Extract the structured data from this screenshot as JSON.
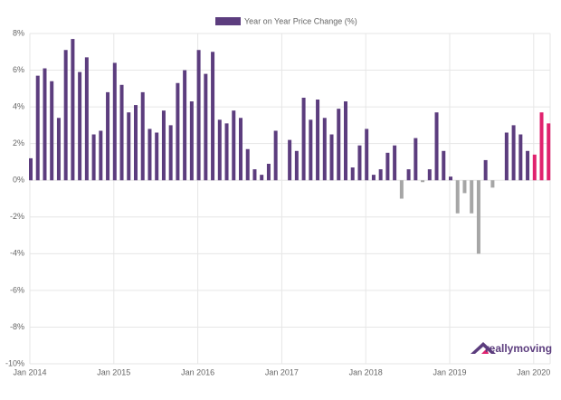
{
  "chart_data": {
    "type": "bar",
    "categories": [
      "Jan 2014",
      null,
      null,
      null,
      null,
      null,
      null,
      null,
      null,
      null,
      null,
      null,
      "Jan 2015",
      null,
      null,
      null,
      null,
      null,
      null,
      null,
      null,
      null,
      null,
      null,
      "Jan 2016",
      null,
      null,
      null,
      null,
      null,
      null,
      null,
      null,
      null,
      null,
      null,
      "Jan 2017",
      null,
      null,
      null,
      null,
      null,
      null,
      null,
      null,
      null,
      null,
      null,
      "Jan 2018",
      null,
      null,
      null,
      null,
      null,
      null,
      null,
      null,
      null,
      null,
      null,
      "Jan 2019",
      null,
      null,
      null,
      null,
      null,
      null,
      null,
      null,
      null,
      null,
      null,
      "Jan 2020",
      null,
      null
    ],
    "series": [
      {
        "name": "Year on Year Price Change (%)",
        "color": "#5c3d7e",
        "values": [
          1.2,
          5.7,
          6.1,
          5.4,
          3.4,
          7.1,
          7.7,
          5.9,
          6.7,
          2.5,
          2.7,
          4.8,
          6.4,
          5.2,
          3.7,
          4.1,
          4.8,
          2.8,
          2.6,
          3.8,
          3.0,
          5.3,
          6.0,
          4.3,
          7.1,
          5.8,
          7.0,
          3.3,
          3.1,
          3.8,
          3.4,
          1.7,
          0.6,
          0.3,
          0.9,
          2.7,
          0,
          2.2,
          1.6,
          4.5,
          3.3,
          4.4,
          3.4,
          2.5,
          3.9,
          4.3,
          0.7,
          1.9,
          2.8,
          0.3,
          0.6,
          1.5,
          1.9,
          -1.0,
          0.6,
          2.3,
          -0.1,
          0.6,
          3.7,
          1.6,
          0.2,
          -1.8,
          -0.7,
          -1.8,
          -4.0,
          1.1,
          -0.4,
          0,
          2.6,
          3.0,
          2.5,
          1.6,
          1.4,
          3.7,
          3.1
        ],
        "colors": [
          "#5c3d7e",
          "#5c3d7e",
          "#5c3d7e",
          "#5c3d7e",
          "#5c3d7e",
          "#5c3d7e",
          "#5c3d7e",
          "#5c3d7e",
          "#5c3d7e",
          "#5c3d7e",
          "#5c3d7e",
          "#5c3d7e",
          "#5c3d7e",
          "#5c3d7e",
          "#5c3d7e",
          "#5c3d7e",
          "#5c3d7e",
          "#5c3d7e",
          "#5c3d7e",
          "#5c3d7e",
          "#5c3d7e",
          "#5c3d7e",
          "#5c3d7e",
          "#5c3d7e",
          "#5c3d7e",
          "#5c3d7e",
          "#5c3d7e",
          "#5c3d7e",
          "#5c3d7e",
          "#5c3d7e",
          "#5c3d7e",
          "#5c3d7e",
          "#5c3d7e",
          "#5c3d7e",
          "#5c3d7e",
          "#5c3d7e",
          "#5c3d7e",
          "#5c3d7e",
          "#5c3d7e",
          "#5c3d7e",
          "#5c3d7e",
          "#5c3d7e",
          "#5c3d7e",
          "#5c3d7e",
          "#5c3d7e",
          "#5c3d7e",
          "#5c3d7e",
          "#5c3d7e",
          "#5c3d7e",
          "#5c3d7e",
          "#5c3d7e",
          "#5c3d7e",
          "#5c3d7e",
          "#a6a6a6",
          "#5c3d7e",
          "#5c3d7e",
          "#a6a6a6",
          "#5c3d7e",
          "#5c3d7e",
          "#5c3d7e",
          "#5c3d7e",
          "#a6a6a6",
          "#a6a6a6",
          "#a6a6a6",
          "#a6a6a6",
          "#5c3d7e",
          "#a6a6a6",
          "#5c3d7e",
          "#5c3d7e",
          "#5c3d7e",
          "#5c3d7e",
          "#5c3d7e",
          "#e0226e",
          "#e0226e",
          "#e0226e"
        ]
      }
    ],
    "ylim": [
      -10,
      8
    ],
    "yticks": [
      {
        "value": 8,
        "label": "8%"
      },
      {
        "value": 6,
        "label": "6%"
      },
      {
        "value": 4,
        "label": "4%"
      },
      {
        "value": 2,
        "label": "2%"
      },
      {
        "value": 0,
        "label": "0%"
      },
      {
        "value": -2,
        "label": "-2%"
      },
      {
        "value": -4,
        "label": "-4%"
      },
      {
        "value": -6,
        "label": "-6%"
      },
      {
        "value": -8,
        "label": "-8%"
      },
      {
        "value": -10,
        "label": "-10%"
      }
    ],
    "grid": true,
    "logo": "reallymoving"
  }
}
